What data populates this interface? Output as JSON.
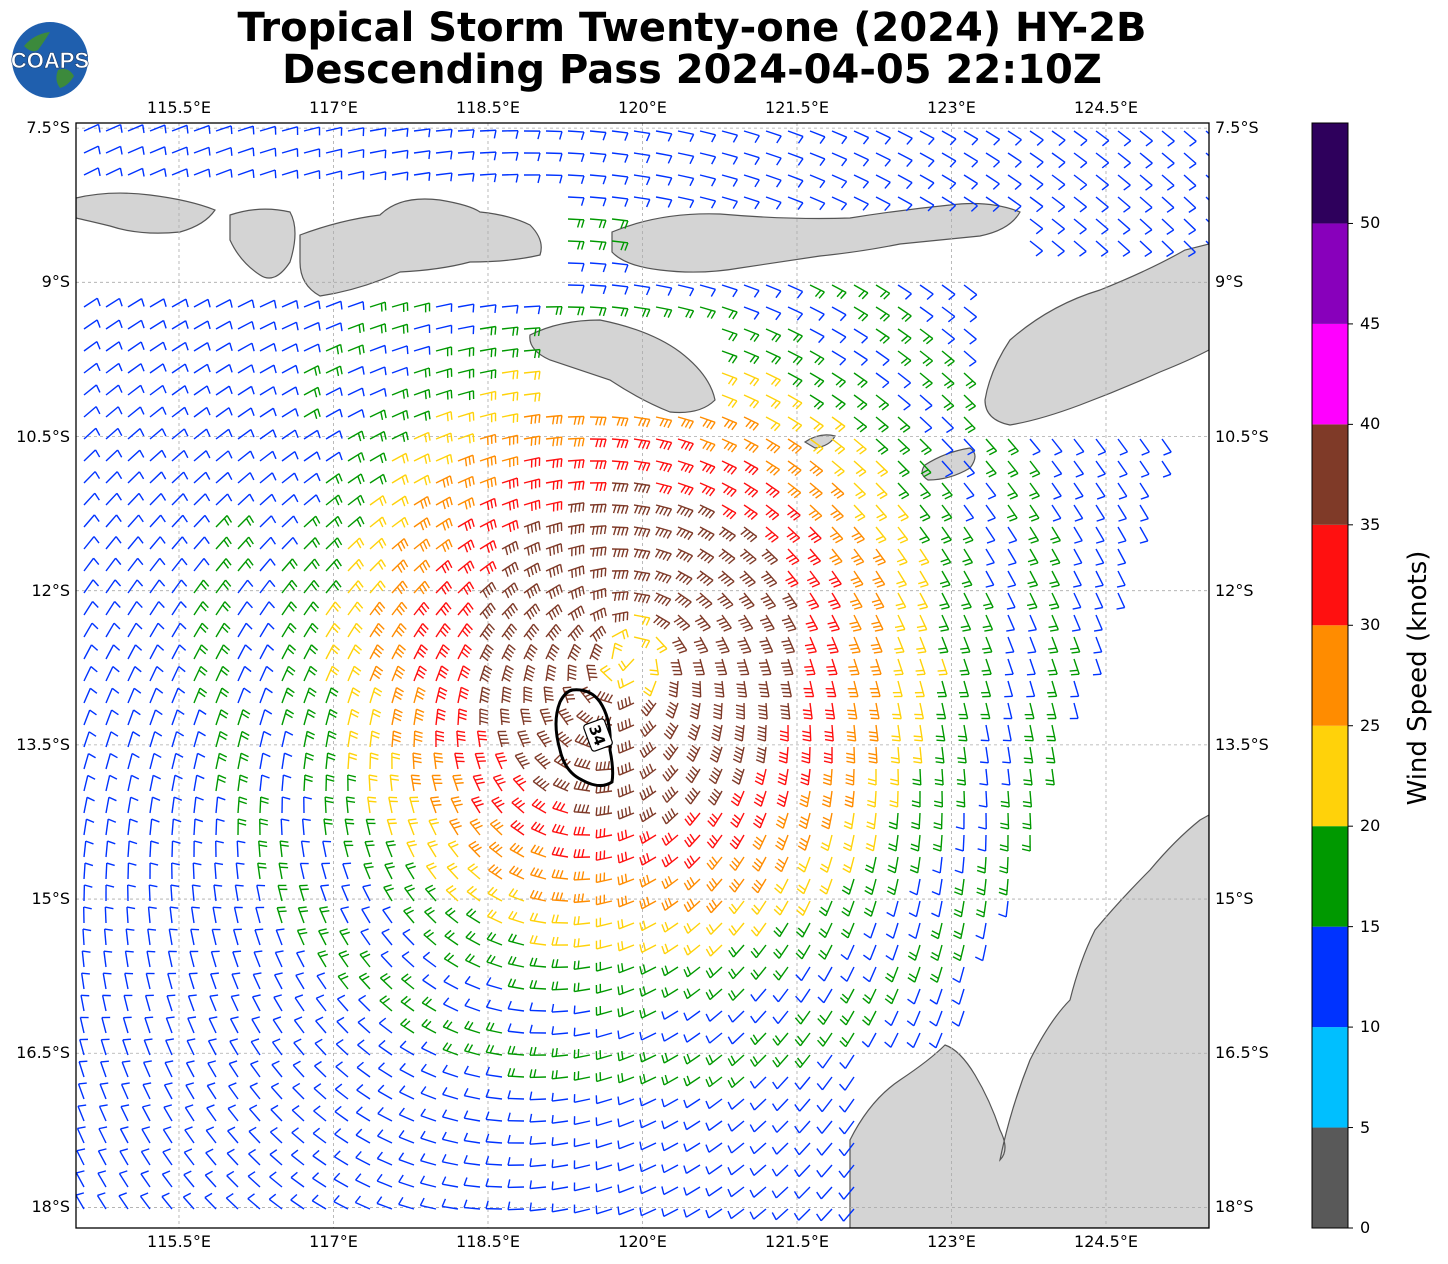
{
  "title": {
    "line1": "Tropical Storm Twenty-one (2024) HY-2B",
    "line2": "Descending Pass 2024-04-05 22:10Z"
  },
  "logo": {
    "text": "COAPS",
    "icon": "globe-icon"
  },
  "map": {
    "lon_labels": [
      "115.5°E",
      "117°E",
      "118.5°E",
      "120°E",
      "121.5°E",
      "123°E",
      "124.5°E"
    ],
    "lat_labels": [
      "7.5°S",
      "9°S",
      "10.5°S",
      "12°S",
      "13.5°S",
      "15°S",
      "16.5°S",
      "18°S"
    ],
    "lon_values": [
      115.5,
      117,
      118.5,
      120,
      121.5,
      123,
      124.5
    ],
    "lat_values": [
      -7.5,
      -9,
      -10.5,
      -12,
      -13.5,
      -15,
      -16.5,
      -18
    ],
    "lon_range": [
      114.5,
      125.5
    ],
    "lat_range": [
      -7.45,
      -18.2
    ],
    "gridlines": true,
    "contour_label": "34",
    "storm_center": {
      "lon": 119.9,
      "lat": -12.6
    },
    "land_color": "#cfcfcf",
    "coast_color": "#555555"
  },
  "colorbar": {
    "label": "Wind Speed (knots)",
    "ticks": [
      "0",
      "5",
      "10",
      "15",
      "20",
      "25",
      "30",
      "35",
      "40",
      "45",
      "50"
    ],
    "min": 0,
    "max": 55,
    "bins": [
      {
        "from": 0,
        "to": 5,
        "color": "#595959"
      },
      {
        "from": 5,
        "to": 10,
        "color": "#00bfff"
      },
      {
        "from": 10,
        "to": 15,
        "color": "#0033ff"
      },
      {
        "from": 15,
        "to": 20,
        "color": "#009900"
      },
      {
        "from": 20,
        "to": 25,
        "color": "#ffd20a"
      },
      {
        "from": 25,
        "to": 30,
        "color": "#ff8c00"
      },
      {
        "from": 30,
        "to": 35,
        "color": "#ff1010"
      },
      {
        "from": 35,
        "to": 40,
        "color": "#7f3a28"
      },
      {
        "from": 40,
        "to": 45,
        "color": "#ff00ff"
      },
      {
        "from": 45,
        "to": 50,
        "color": "#8800bb"
      },
      {
        "from": 50,
        "to": 55,
        "color": "#2e005c"
      }
    ]
  }
}
